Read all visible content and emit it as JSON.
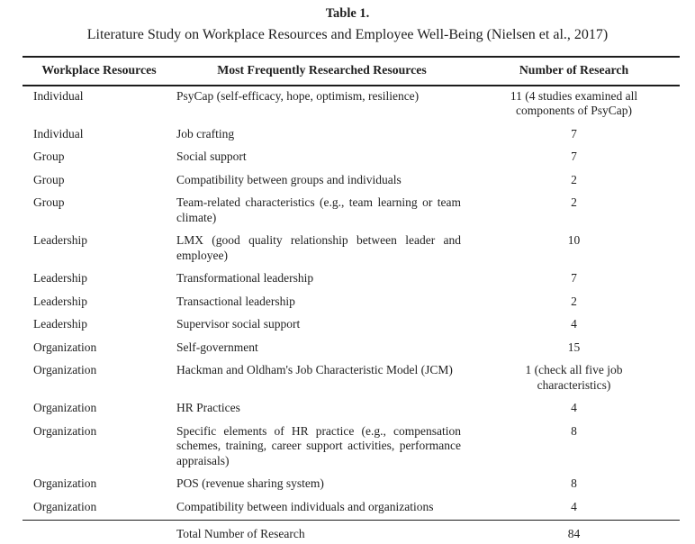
{
  "document": {
    "title": "Table 1.",
    "subtitle": "Literature Study on Workplace Resources and Employee Well-Being (Nielsen et al., 2017)"
  },
  "table": {
    "headers": {
      "col1": "Workplace Resources",
      "col2": "Most Frequently Researched Resources",
      "col3": "Number of Research"
    },
    "rows": [
      {
        "category": "Individual",
        "resource": "PsyCap (self-efficacy, hope, optimism, resilience)",
        "count": "11 (4 studies examined all components of PsyCap)"
      },
      {
        "category": "Individual",
        "resource": "Job crafting",
        "count": "7"
      },
      {
        "category": "Group",
        "resource": "Social support",
        "count": "7"
      },
      {
        "category": "Group",
        "resource": "Compatibility between groups and individuals",
        "count": "2"
      },
      {
        "category": "Group",
        "resource": "Team-related characteristics (e.g., team learning or team climate)",
        "count": "2"
      },
      {
        "category": "Leadership",
        "resource": "LMX (good quality relationship between leader and employee)",
        "count": "10"
      },
      {
        "category": "Leadership",
        "resource": "Transformational leadership",
        "count": "7"
      },
      {
        "category": "Leadership",
        "resource": "Transactional leadership",
        "count": "2"
      },
      {
        "category": "Leadership",
        "resource": "Supervisor social support",
        "count": "4"
      },
      {
        "category": "Organization",
        "resource": "Self-government",
        "count": "15"
      },
      {
        "category": "Organization",
        "resource": "Hackman and Oldham's Job Characteristic Model (JCM)",
        "count": "1 (check all five job characteristics)"
      },
      {
        "category": "Organization",
        "resource": "HR Practices",
        "count": "4"
      },
      {
        "category": "Organization",
        "resource": "Specific elements of HR practice (e.g., compensation schemes, training, career support activities, performance appraisals)",
        "count": "8"
      },
      {
        "category": "Organization",
        "resource": "POS (revenue sharing system)",
        "count": "8"
      },
      {
        "category": "Organization",
        "resource": "Compatibility between individuals and organizations",
        "count": "4"
      }
    ],
    "total": {
      "label": "Total Number of Research",
      "value": "84"
    }
  },
  "colors": {
    "text": "#1f1f1f",
    "rule": "#1c1c1c",
    "background": "#ffffff"
  }
}
